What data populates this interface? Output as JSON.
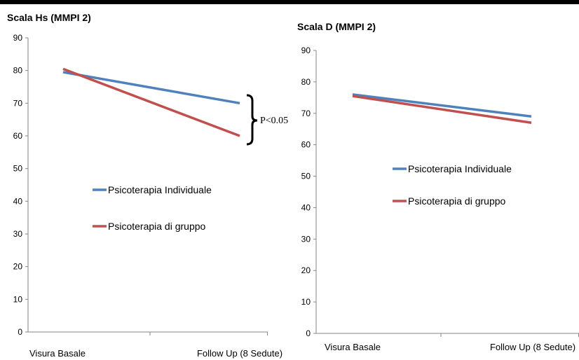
{
  "chart_data": [
    {
      "type": "line",
      "title": "Scala Hs (MMPI 2)",
      "xlabel": "",
      "ylabel": "",
      "categories": [
        "Visura Basale",
        "Follow Up (8 Sedute)"
      ],
      "ylim": [
        0,
        90
      ],
      "yticks": [
        0,
        10,
        20,
        30,
        40,
        50,
        60,
        70,
        80,
        90
      ],
      "series": [
        {
          "name": "Psicoterapia Individuale",
          "color": "#4f81bd",
          "values": [
            79.5,
            70
          ]
        },
        {
          "name": "Psicoterapia di gruppo",
          "color": "#c0504d",
          "values": [
            80.5,
            60
          ]
        }
      ],
      "legend_position": "center",
      "annotation": "P<0.05",
      "grid": false
    },
    {
      "type": "line",
      "title": "Scala D (MMPI 2)",
      "xlabel": "",
      "ylabel": "",
      "categories": [
        "Visura Basale",
        "Follow Up (8 Sedute)"
      ],
      "ylim": [
        0,
        90
      ],
      "yticks": [
        0,
        10,
        20,
        30,
        40,
        50,
        60,
        70,
        80,
        90
      ],
      "series": [
        {
          "name": "Psicoterapia Individuale",
          "color": "#4f81bd",
          "values": [
            76,
            69
          ]
        },
        {
          "name": "Psicoterapia di gruppo",
          "color": "#c0504d",
          "values": [
            75.5,
            67
          ]
        }
      ],
      "legend_position": "center",
      "grid": false
    }
  ]
}
